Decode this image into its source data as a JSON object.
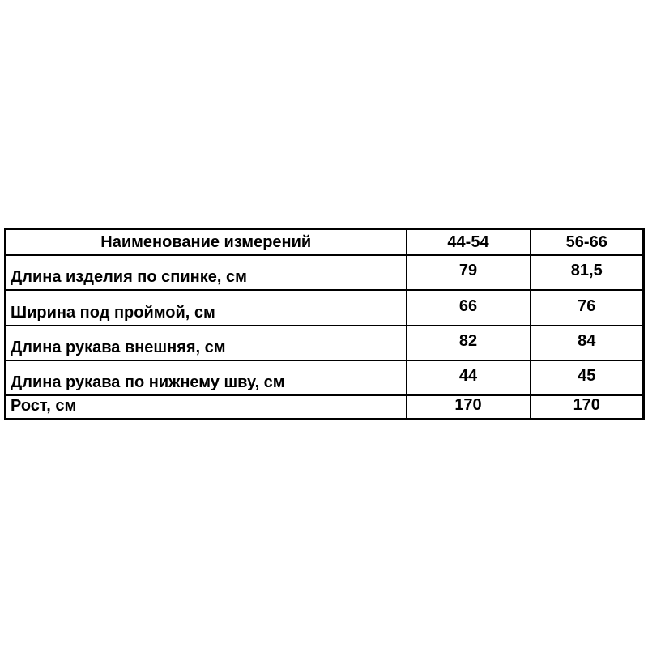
{
  "page": {
    "background_color": "#ffffff",
    "text_color": "#000000",
    "border_color": "#000000"
  },
  "table": {
    "columns": [
      "Наименование измерений",
      "44-54",
      "56-66"
    ],
    "rows": [
      {
        "name": "Длина изделия по спинке, см",
        "values": [
          "79",
          "81,5"
        ]
      },
      {
        "name": "Ширина под проймой, см",
        "values": [
          "66",
          "76"
        ]
      },
      {
        "name": "Длина рукава внешняя, см",
        "values": [
          "82",
          "84"
        ]
      },
      {
        "name": "Длина рукава по нижнему шву, см",
        "values": [
          "44",
          "45"
        ]
      },
      {
        "name": "Рост, см",
        "values": [
          "170",
          "170"
        ]
      }
    ]
  }
}
